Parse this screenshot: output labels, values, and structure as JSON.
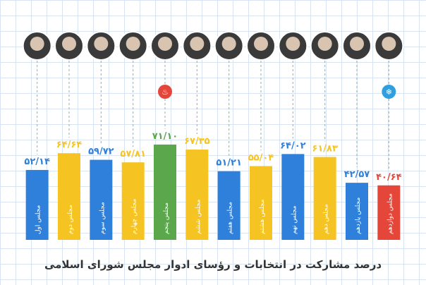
{
  "chart_data": {
    "type": "bar",
    "title": "درصد مشارکت در انتخابات و رؤسای ادوار مجلس شورای اسلامی",
    "categories": [
      "مجلس اول",
      "مجلس دوم",
      "مجلس سوم",
      "مجلس چهارم",
      "مجلس پنجم",
      "مجلس ششم",
      "مجلس هفتم",
      "مجلس هشتم",
      "مجلس نهم",
      "مجلس دهم",
      "مجلس یازدهم",
      "مجلس دوازدهم"
    ],
    "values": [
      52.14,
      64.64,
      59.72,
      57.81,
      71.1,
      67.35,
      51.21,
      55.04,
      64.02,
      61.83,
      42.57,
      40.64
    ],
    "value_labels": [
      "۵۲/۱۴",
      "۶۴/۶۴",
      "۵۹/۷۲",
      "۵۷/۸۱",
      "۷۱/۱۰",
      "۶۷/۳۵",
      "۵۱/۲۱",
      "۵۵/۰۴",
      "۶۴/۰۲",
      "۶۱/۸۳",
      "۴۲/۵۷",
      "۴۰/۶۴"
    ],
    "colors": [
      "#2f80da",
      "#f5c423",
      "#2f80da",
      "#f5c423",
      "#5ba84c",
      "#f5c423",
      "#2f80da",
      "#f5c423",
      "#2f80da",
      "#f5c423",
      "#2f80da",
      "#e4463a"
    ]
  }
}
